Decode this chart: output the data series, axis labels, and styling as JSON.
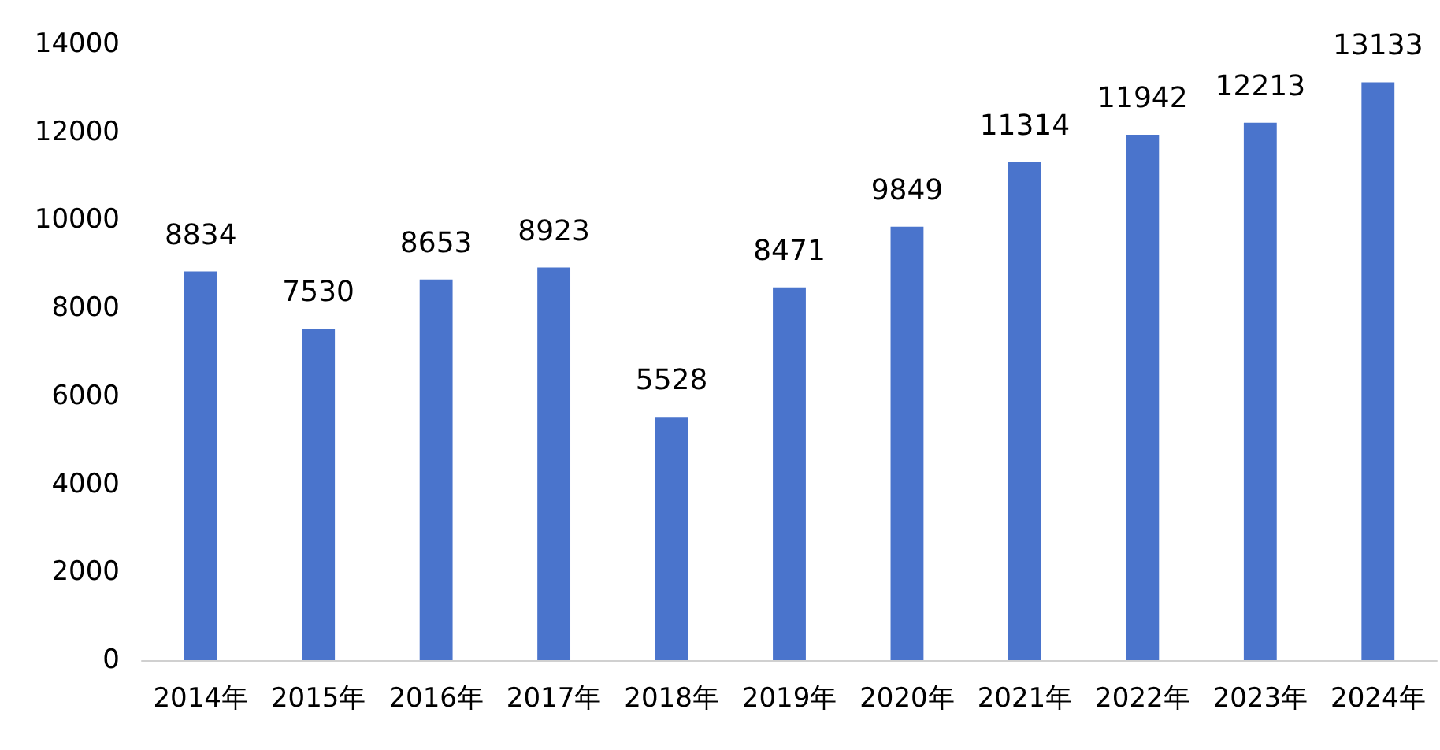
{
  "chart_data": {
    "type": "bar",
    "categories": [
      "2014年",
      "2015年",
      "2016年",
      "2017年",
      "2018年",
      "2019年",
      "2020年",
      "2021年",
      "2022年",
      "2023年",
      "2024年"
    ],
    "values": [
      8834,
      7530,
      8653,
      8923,
      5528,
      8471,
      9849,
      11314,
      11942,
      12213,
      13133
    ],
    "color": "#4a74cc",
    "ylim": [
      0,
      14000
    ],
    "yticks": [
      0,
      2000,
      4000,
      6000,
      8000,
      10000,
      12000,
      14000
    ],
    "data_labels": true,
    "grid": false
  }
}
